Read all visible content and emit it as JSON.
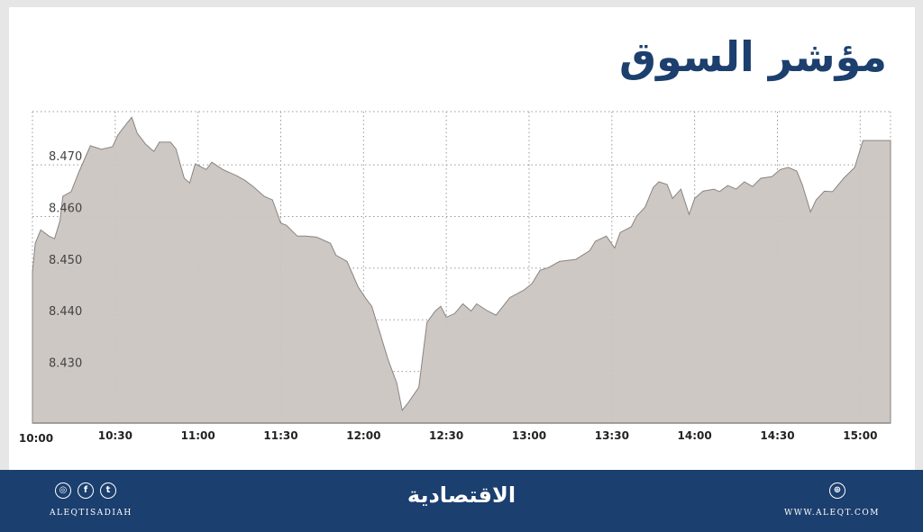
{
  "title": "مؤشر السوق",
  "colors": {
    "fill": "#cbc5c1",
    "line": "#8a8482",
    "navy": "#1b3f6e",
    "grid": "#999999"
  },
  "chart_data": {
    "type": "area",
    "title": "مؤشر السوق",
    "xlabel": "",
    "ylabel": "",
    "x_ticks": [
      "10:00",
      "10:30",
      "11:00",
      "11:30",
      "12:00",
      "12:30",
      "13:00",
      "13:30",
      "14:00",
      "14:30",
      "15:00"
    ],
    "y_ticks": [
      "8.430",
      "8.440",
      "8.450",
      "8.460",
      "8.470"
    ],
    "xlim": [
      "10:00",
      "15:11"
    ],
    "ylim": [
      8.42,
      8.4803
    ],
    "grid": true,
    "points": [
      [
        "10:00",
        8.4492
      ],
      [
        "10:01",
        8.4548
      ],
      [
        "10:03",
        8.4574
      ],
      [
        "10:06",
        8.4562
      ],
      [
        "10:08",
        8.4557
      ],
      [
        "10:10",
        8.4592
      ],
      [
        "10:11",
        8.4639
      ],
      [
        "10:14",
        8.4648
      ],
      [
        "10:17",
        8.4688
      ],
      [
        "10:21",
        8.4737
      ],
      [
        "10:25",
        8.473
      ],
      [
        "10:29",
        8.4735
      ],
      [
        "10:31",
        8.4758
      ],
      [
        "10:34",
        8.4779
      ],
      [
        "10:36",
        8.4792
      ],
      [
        "10:38",
        8.4761
      ],
      [
        "10:41",
        8.474
      ],
      [
        "10:44",
        8.4726
      ],
      [
        "10:46",
        8.4744
      ],
      [
        "10:50",
        8.4744
      ],
      [
        "10:52",
        8.4731
      ],
      [
        "10:55",
        8.4674
      ],
      [
        "10:57",
        8.4665
      ],
      [
        "10:59",
        8.4702
      ],
      [
        "11:03",
        8.4691
      ],
      [
        "11:05",
        8.4705
      ],
      [
        "11:09",
        8.4691
      ],
      [
        "11:14",
        8.4679
      ],
      [
        "11:17",
        8.467
      ],
      [
        "11:20",
        8.4658
      ],
      [
        "11:24",
        8.4639
      ],
      [
        "11:27",
        8.4632
      ],
      [
        "11:30",
        8.4587
      ],
      [
        "11:32",
        8.4583
      ],
      [
        "11:36",
        8.4562
      ],
      [
        "11:39",
        8.4562
      ],
      [
        "11:43",
        8.456
      ],
      [
        "11:48",
        8.4548
      ],
      [
        "11:50",
        8.4525
      ],
      [
        "11:54",
        8.4513
      ],
      [
        "11:58",
        8.4464
      ],
      [
        "12:01",
        8.444
      ],
      [
        "12:03",
        8.4426
      ],
      [
        "12:05",
        8.4391
      ],
      [
        "12:09",
        8.4321
      ],
      [
        "12:12",
        8.4278
      ],
      [
        "12:14",
        8.4225
      ],
      [
        "12:16",
        8.4238
      ],
      [
        "12:17",
        8.4246
      ],
      [
        "12:20",
        8.4269
      ],
      [
        "12:23",
        8.4395
      ],
      [
        "12:26",
        8.4417
      ],
      [
        "12:28",
        8.4426
      ],
      [
        "12:30",
        8.4405
      ],
      [
        "12:33",
        8.4412
      ],
      [
        "12:36",
        8.4431
      ],
      [
        "12:39",
        8.4417
      ],
      [
        "12:41",
        8.4431
      ],
      [
        "12:45",
        8.4417
      ],
      [
        "12:48",
        8.4409
      ],
      [
        "12:53",
        8.4443
      ],
      [
        "12:58",
        8.4457
      ],
      [
        "13:01",
        8.447
      ],
      [
        "13:04",
        8.4496
      ],
      [
        "13:07",
        8.4501
      ],
      [
        "13:11",
        8.4513
      ],
      [
        "13:17",
        8.4517
      ],
      [
        "13:22",
        8.4534
      ],
      [
        "13:24",
        8.4552
      ],
      [
        "13:28",
        8.4562
      ],
      [
        "13:31",
        8.4539
      ],
      [
        "13:33",
        8.4569
      ],
      [
        "13:37",
        8.458
      ],
      [
        "13:39",
        8.4601
      ],
      [
        "13:42",
        8.4618
      ],
      [
        "13:45",
        8.4656
      ],
      [
        "13:47",
        8.4667
      ],
      [
        "13:50",
        8.4662
      ],
      [
        "13:52",
        8.4635
      ],
      [
        "13:55",
        8.4653
      ],
      [
        "13:58",
        8.4604
      ],
      [
        "14:00",
        8.4635
      ],
      [
        "14:03",
        8.4649
      ],
      [
        "14:07",
        8.4653
      ],
      [
        "14:09",
        8.4648
      ],
      [
        "14:12",
        8.466
      ],
      [
        "14:15",
        8.4653
      ],
      [
        "14:18",
        8.4667
      ],
      [
        "14:21",
        8.4658
      ],
      [
        "14:24",
        8.4674
      ],
      [
        "14:28",
        8.4677
      ],
      [
        "14:31",
        8.4691
      ],
      [
        "14:34",
        8.4695
      ],
      [
        "14:37",
        8.4688
      ],
      [
        "14:39",
        8.4662
      ],
      [
        "14:42",
        8.4609
      ],
      [
        "14:44",
        8.4632
      ],
      [
        "14:47",
        8.4649
      ],
      [
        "14:50",
        8.4648
      ],
      [
        "14:54",
        8.4674
      ],
      [
        "14:58",
        8.4695
      ],
      [
        "15:01",
        8.4747
      ],
      [
        "15:11",
        8.4747
      ]
    ]
  },
  "footer": {
    "brand": "الاقتصادية",
    "handle": "ALEQTISADIAH",
    "site": "WWW.ALEQT.COM",
    "social_icons": [
      "instagram-icon",
      "facebook-icon",
      "twitter-icon"
    ],
    "web_icon": "globe-icon"
  }
}
